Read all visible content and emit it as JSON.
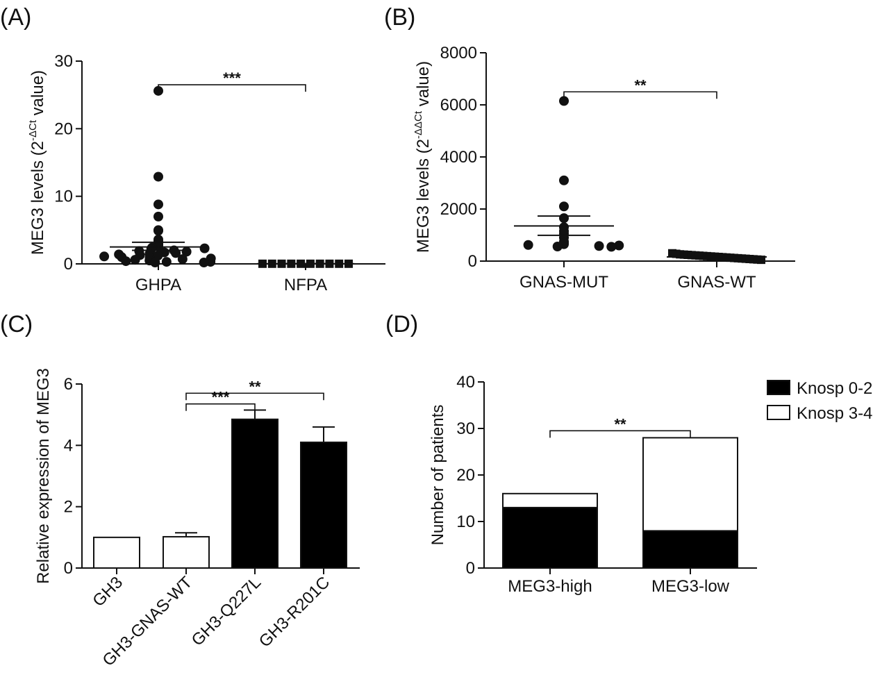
{
  "colors": {
    "ink": "#111111",
    "black_fill": "#000000",
    "white_fill": "#ffffff"
  },
  "chart_data": [
    {
      "panel": "(A)",
      "type": "scatter",
      "ylabel": "MEG3 levels (2",
      "ylabel_sup": "-ΔCt",
      "ylabel_end": " value)",
      "ylim": [
        0,
        30
      ],
      "yticks": [
        0,
        10,
        20,
        30
      ],
      "categories": [
        "GHPA",
        "NFPA"
      ],
      "groups": [
        {
          "name": "GHPA",
          "marker": "circle",
          "values": [
            25.6,
            12.9,
            8.8,
            7.0,
            5.0,
            4.9,
            3.6,
            3.3,
            3.1,
            2.9,
            2.8,
            2.7,
            2.6,
            2.5,
            2.4,
            2.3,
            2.2,
            2.0,
            1.9,
            1.8,
            1.7,
            1.6,
            1.5,
            1.4,
            1.3,
            1.2,
            1.1,
            1.0,
            0.9,
            0.8,
            0.7,
            0.6,
            0.5,
            0.4,
            0.3,
            0.3,
            0.2,
            0.2
          ],
          "mean": 2.5,
          "sem_low": 2.0,
          "sem_high": 3.2
        },
        {
          "name": "NFPA",
          "marker": "square",
          "values": [
            0.02,
            0.02,
            0.02,
            0.02,
            0.02,
            0.02,
            0.02,
            0.02,
            0.02,
            0.02
          ],
          "mean": 0.02,
          "sem_low": 0.0,
          "sem_high": 0.05
        }
      ],
      "significance": [
        {
          "from": 0,
          "to": 1,
          "y": 26.5,
          "label": "***"
        }
      ]
    },
    {
      "panel": "(B)",
      "type": "scatter",
      "ylabel": "MEG3 levels (2",
      "ylabel_sup": "-ΔΔCt",
      "ylabel_end": " value)",
      "ylim": [
        0,
        8000
      ],
      "yticks": [
        0,
        2000,
        4000,
        6000,
        8000
      ],
      "categories": [
        "GNAS-MUT",
        "GNAS-WT"
      ],
      "groups": [
        {
          "name": "GNAS-MUT",
          "marker": "circle",
          "values": [
            6150,
            3100,
            2100,
            1650,
            1300,
            1150,
            1050,
            900,
            750,
            700,
            650,
            620,
            600,
            580,
            560,
            550
          ],
          "mean": 1350,
          "sem_low": 990,
          "sem_high": 1730
        },
        {
          "name": "GNAS-WT",
          "marker": "square",
          "values": [
            300,
            280,
            260,
            250,
            240,
            230,
            220,
            210,
            200,
            190,
            180,
            170,
            160,
            150,
            140,
            130,
            120,
            110,
            100,
            90,
            80,
            70,
            60,
            50
          ],
          "mean": 160,
          "sem_low": 130,
          "sem_high": 190
        }
      ],
      "significance": [
        {
          "from": 0,
          "to": 1,
          "y": 6500,
          "label": "**"
        }
      ]
    },
    {
      "panel": "(C)",
      "type": "bar",
      "ylabel": "Relative expression of MEG3",
      "ylim": [
        0,
        6
      ],
      "yticks": [
        0,
        2,
        4,
        6
      ],
      "categories": [
        "GH3",
        "GH3-GNAS-WT",
        "GH3-Q227L",
        "GH3-R201C"
      ],
      "values": [
        1.0,
        1.02,
        4.85,
        4.1
      ],
      "errors": [
        0.0,
        0.13,
        0.3,
        0.5
      ],
      "fills": [
        "white",
        "white",
        "black",
        "black"
      ],
      "significance": [
        {
          "from": 1,
          "to": 2,
          "y": 5.35,
          "label": "***"
        },
        {
          "from": 1,
          "to": 3,
          "y": 5.7,
          "label": "**"
        }
      ]
    },
    {
      "panel": "(D)",
      "type": "bar",
      "stacked": true,
      "ylabel": "Number of patients",
      "ylim": [
        0,
        40
      ],
      "yticks": [
        0,
        10,
        20,
        30,
        40
      ],
      "categories": [
        "MEG3-high",
        "MEG3-low"
      ],
      "series": [
        {
          "name": "Knosp 0-2",
          "fill": "black",
          "values": [
            13,
            8
          ]
        },
        {
          "name": "Knosp 3-4",
          "fill": "white",
          "values": [
            3,
            20
          ]
        }
      ],
      "legend_position": "top-right",
      "significance": [
        {
          "from": 0,
          "to": 1,
          "y": 29.5,
          "label": "**"
        }
      ]
    }
  ]
}
